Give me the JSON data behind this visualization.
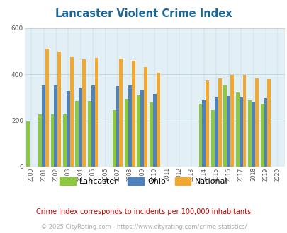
{
  "title": "Lancaster Violent Crime Index",
  "title_color": "#1a6699",
  "years": [
    2000,
    2001,
    2002,
    2003,
    2004,
    2005,
    2006,
    2007,
    2008,
    2009,
    2010,
    2011,
    2012,
    2013,
    2014,
    2015,
    2016,
    2017,
    2018,
    2019,
    2020
  ],
  "lancaster": [
    195,
    225,
    225,
    225,
    283,
    283,
    0,
    243,
    292,
    307,
    278,
    0,
    0,
    0,
    272,
    245,
    350,
    320,
    288,
    272,
    0
  ],
  "ohio": [
    0,
    350,
    350,
    328,
    340,
    352,
    0,
    347,
    350,
    330,
    315,
    0,
    0,
    0,
    288,
    300,
    305,
    300,
    282,
    297,
    0
  ],
  "national": [
    0,
    510,
    498,
    475,
    465,
    470,
    0,
    467,
    457,
    430,
    405,
    0,
    0,
    0,
    373,
    383,
    398,
    398,
    383,
    379,
    0
  ],
  "lancaster_color": "#8dc63f",
  "ohio_color": "#4f81bd",
  "national_color": "#f0a830",
  "plot_bg": "#e2eff5",
  "ylim": [
    0,
    600
  ],
  "yticks": [
    0,
    200,
    400,
    600
  ],
  "subtitle": "Crime Index corresponds to incidents per 100,000 inhabitants",
  "subtitle_color": "#cc0000",
  "footer": "© 2025 CityRating.com - https://www.cityrating.com/crime-statistics/",
  "footer_color": "#aaaaaa",
  "bar_width": 0.28
}
